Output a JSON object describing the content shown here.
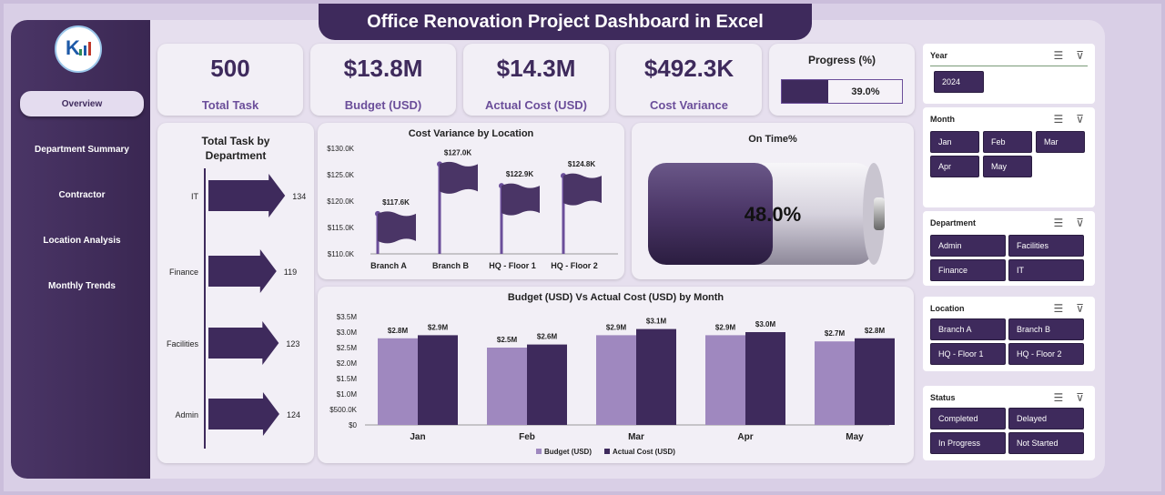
{
  "title": "Office Renovation Project Dashboard in Excel",
  "nav": [
    {
      "label": "Overview",
      "active": true
    },
    {
      "label": "Department Summary",
      "active": false
    },
    {
      "label": "Contractor",
      "active": false
    },
    {
      "label": "Location Analysis",
      "active": false
    },
    {
      "label": "Monthly Trends",
      "active": false
    }
  ],
  "kpis": [
    {
      "value": "500",
      "label": "Total Task"
    },
    {
      "value": "$13.8M",
      "label": "Budget (USD)"
    },
    {
      "value": "$14.3M",
      "label": "Actual Cost (USD)"
    },
    {
      "value": "$492.3K",
      "label": "Cost Variance"
    }
  ],
  "progress": {
    "title": "Progress (%)",
    "value_text": "39.0%",
    "value": 0.39
  },
  "colors": {
    "primary": "#3e2a5c",
    "secondary": "#9f88bf",
    "accent_text": "#6b4e9a"
  },
  "chart_data": [
    {
      "type": "bar",
      "title": "Total Task by Department",
      "categories": [
        "IT",
        "Finance",
        "Facilities",
        "Admin"
      ],
      "values": [
        134,
        119,
        123,
        124
      ],
      "orientation": "horizontal"
    },
    {
      "type": "bar",
      "title": "Cost Variance by Location",
      "categories": [
        "Branch A",
        "Branch B",
        "HQ - Floor 1",
        "HQ - Floor 2"
      ],
      "values": [
        117.6,
        127.0,
        122.9,
        124.8
      ],
      "value_labels": [
        "$117.6K",
        "$127.0K",
        "$122.9K",
        "$124.8K"
      ],
      "yticks": [
        "$110.0K",
        "$115.0K",
        "$120.0K",
        "$125.0K",
        "$130.0K"
      ],
      "ylim": [
        110,
        130
      ]
    },
    {
      "type": "bar",
      "title": "On Time%",
      "values": [
        48.0
      ],
      "value_labels": [
        "48.0%"
      ]
    },
    {
      "type": "bar",
      "title": "Budget (USD) Vs Actual Cost (USD) by Month",
      "categories": [
        "Jan",
        "Feb",
        "Mar",
        "Apr",
        "May"
      ],
      "series": [
        {
          "name": "Budget (USD)",
          "values": [
            2.8,
            2.5,
            2.9,
            2.9,
            2.7
          ],
          "labels": [
            "$2.8M",
            "$2.5M",
            "$2.9M",
            "$2.9M",
            "$2.7M"
          ],
          "color": "#9f88bf"
        },
        {
          "name": "Actual Cost (USD)",
          "values": [
            2.9,
            2.6,
            3.1,
            3.0,
            2.8
          ],
          "labels": [
            "$2.9M",
            "$2.6M",
            "$3.1M",
            "$3.0M",
            "$2.8M"
          ],
          "color": "#3e2a5c"
        }
      ],
      "yticks": [
        "$0",
        "$500.0K",
        "$1.0M",
        "$1.5M",
        "$2.0M",
        "$2.5M",
        "$3.0M",
        "$3.5M"
      ],
      "ylim": [
        0,
        3.5
      ],
      "legend": "bottom"
    }
  ],
  "slicers": [
    {
      "title": "Year",
      "items": [
        "2024"
      ]
    },
    {
      "title": "Month",
      "items": [
        "Jan",
        "Feb",
        "Mar",
        "Apr",
        "May"
      ]
    },
    {
      "title": "Department",
      "items": [
        "Admin",
        "Facilities",
        "Finance",
        "IT"
      ]
    },
    {
      "title": "Location",
      "items": [
        "Branch A",
        "Branch B",
        "HQ - Floor 1",
        "HQ - Floor 2"
      ]
    },
    {
      "title": "Status",
      "items": [
        "Completed",
        "Delayed",
        "In Progress",
        "Not Started"
      ]
    }
  ]
}
